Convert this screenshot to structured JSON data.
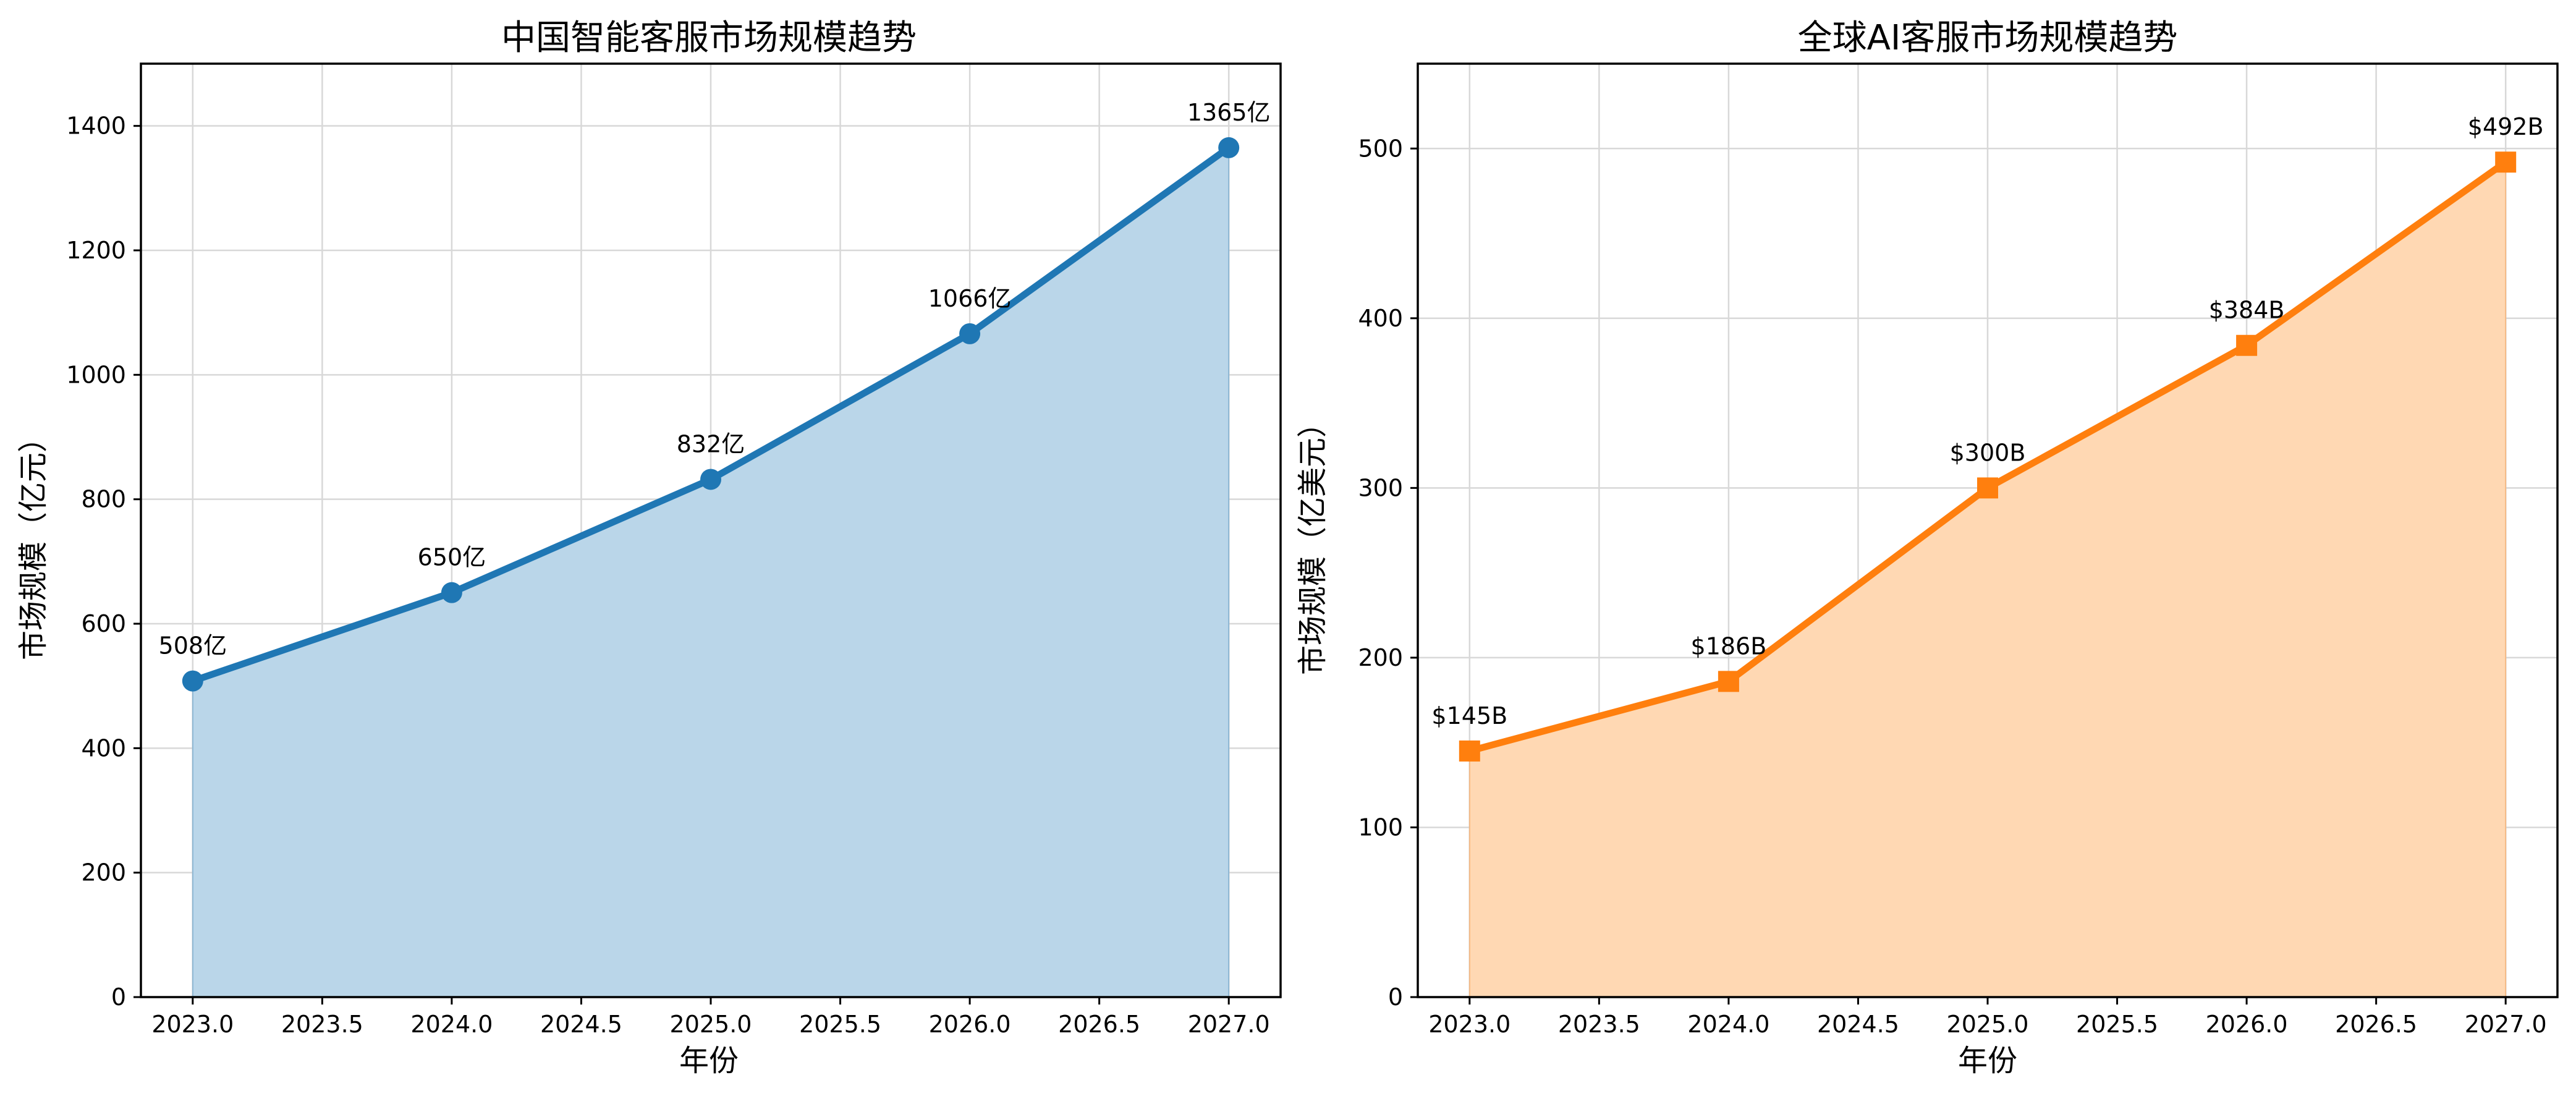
{
  "chart_data": [
    {
      "type": "area",
      "title": "中国智能客服市场规模趋势",
      "xlabel": "年份",
      "ylabel": "市场规模（亿元）",
      "x": [
        2023,
        2024,
        2025,
        2026,
        2027
      ],
      "values": [
        508,
        650,
        832,
        1066,
        1365
      ],
      "data_labels": [
        "508亿",
        "650亿",
        "832亿",
        "1066亿",
        "1365亿"
      ],
      "xlim": [
        2022.8,
        2027.2
      ],
      "ylim": [
        0,
        1500
      ],
      "x_ticks": [
        "2023.0",
        "2023.5",
        "2024.0",
        "2024.5",
        "2025.0",
        "2025.5",
        "2026.0",
        "2026.5",
        "2027.0"
      ],
      "y_ticks": [
        "0",
        "200",
        "400",
        "600",
        "800",
        "1000",
        "1200",
        "1400"
      ],
      "marker": "circle",
      "color": "#1f77b4",
      "fill_color": "#bad6e9",
      "grid": true
    },
    {
      "type": "area",
      "title": "全球AI客服市场规模趋势",
      "xlabel": "年份",
      "ylabel": "市场规模（亿美元）",
      "x": [
        2023,
        2024,
        2025,
        2026,
        2027
      ],
      "values": [
        145,
        186,
        300,
        384,
        492
      ],
      "data_labels": [
        "$145B",
        "$186B",
        "$300B",
        "$384B",
        "$492B"
      ],
      "xlim": [
        2022.8,
        2027.2
      ],
      "ylim": [
        0,
        550
      ],
      "x_ticks": [
        "2023.0",
        "2023.5",
        "2024.0",
        "2024.5",
        "2025.0",
        "2025.5",
        "2026.0",
        "2026.5",
        "2027.0"
      ],
      "y_ticks": [
        "0",
        "100",
        "200",
        "300",
        "400",
        "500"
      ],
      "marker": "square",
      "color": "#ff7f0e",
      "fill_color": "#ffd8b3",
      "grid": true
    }
  ]
}
